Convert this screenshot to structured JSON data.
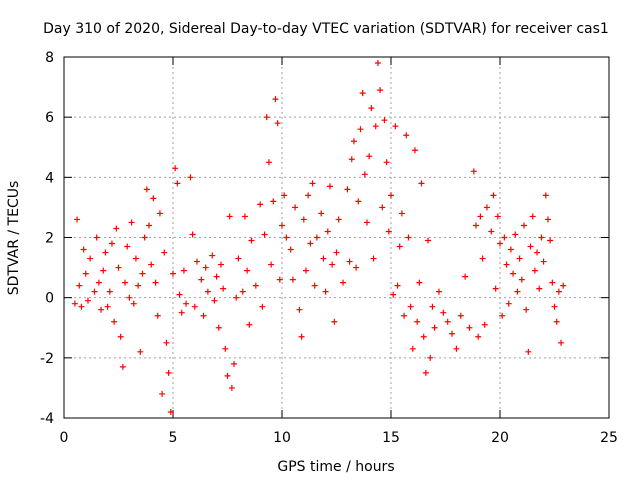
{
  "chart_data": {
    "type": "scatter",
    "title": "Day 310 of 2020, Sidereal Day-to-day VTEC variation (SDTVAR) for receiver cas1",
    "xlabel": "GPS time / hours",
    "ylabel": "SDTVAR / TECUs",
    "xlim": [
      0,
      25
    ],
    "ylim": [
      -4,
      8
    ],
    "xticks": [
      0,
      5,
      10,
      15,
      20,
      25
    ],
    "yticks": [
      -4,
      -2,
      0,
      2,
      4,
      6,
      8
    ],
    "grid": true,
    "marker": "+",
    "series": [
      {
        "name": "SDTVAR",
        "color": "#ff0000",
        "points": [
          [
            0.5,
            -0.2
          ],
          [
            0.6,
            2.6
          ],
          [
            0.7,
            0.4
          ],
          [
            0.8,
            -0.3
          ],
          [
            0.9,
            1.6
          ],
          [
            1.0,
            0.8
          ],
          [
            1.1,
            -0.1
          ],
          [
            1.2,
            1.3
          ],
          [
            1.4,
            0.2
          ],
          [
            1.5,
            2.0
          ],
          [
            1.6,
            0.5
          ],
          [
            1.7,
            -0.4
          ],
          [
            1.8,
            0.9
          ],
          [
            1.9,
            1.5
          ],
          [
            2.0,
            -0.3
          ],
          [
            2.1,
            0.2
          ],
          [
            2.2,
            1.8
          ],
          [
            2.3,
            -0.8
          ],
          [
            2.4,
            2.3
          ],
          [
            2.5,
            1.0
          ],
          [
            2.6,
            -1.3
          ],
          [
            2.7,
            -2.3
          ],
          [
            2.8,
            0.5
          ],
          [
            2.9,
            1.7
          ],
          [
            3.0,
            0.0
          ],
          [
            3.1,
            2.5
          ],
          [
            3.2,
            -0.2
          ],
          [
            3.3,
            1.3
          ],
          [
            3.4,
            0.4
          ],
          [
            3.5,
            -1.8
          ],
          [
            3.6,
            0.8
          ],
          [
            3.7,
            2.0
          ],
          [
            3.8,
            3.6
          ],
          [
            3.9,
            2.4
          ],
          [
            4.0,
            1.1
          ],
          [
            4.1,
            3.3
          ],
          [
            4.2,
            0.5
          ],
          [
            4.3,
            -0.6
          ],
          [
            4.4,
            2.8
          ],
          [
            4.5,
            -3.2
          ],
          [
            4.6,
            1.5
          ],
          [
            4.7,
            -1.5
          ],
          [
            4.8,
            -2.5
          ],
          [
            4.9,
            -3.8
          ],
          [
            5.0,
            0.8
          ],
          [
            5.1,
            4.3
          ],
          [
            5.2,
            3.8
          ],
          [
            5.3,
            0.1
          ],
          [
            5.4,
            -0.5
          ],
          [
            5.5,
            0.9
          ],
          [
            5.6,
            -0.2
          ],
          [
            5.8,
            4.0
          ],
          [
            5.9,
            2.1
          ],
          [
            6.0,
            -0.3
          ],
          [
            6.1,
            1.2
          ],
          [
            6.3,
            0.6
          ],
          [
            6.4,
            -0.6
          ],
          [
            6.5,
            1.0
          ],
          [
            6.6,
            0.2
          ],
          [
            6.8,
            1.4
          ],
          [
            6.9,
            -0.1
          ],
          [
            7.0,
            0.7
          ],
          [
            7.1,
            -1.0
          ],
          [
            7.2,
            1.1
          ],
          [
            7.3,
            0.3
          ],
          [
            7.4,
            -1.7
          ],
          [
            7.5,
            -2.6
          ],
          [
            7.6,
            2.7
          ],
          [
            7.7,
            -3.0
          ],
          [
            7.8,
            -2.2
          ],
          [
            7.9,
            0.0
          ],
          [
            8.0,
            1.3
          ],
          [
            8.2,
            0.2
          ],
          [
            8.3,
            2.7
          ],
          [
            8.4,
            0.9
          ],
          [
            8.5,
            -0.9
          ],
          [
            8.6,
            1.9
          ],
          [
            8.8,
            0.4
          ],
          [
            9.0,
            3.1
          ],
          [
            9.1,
            -0.3
          ],
          [
            9.2,
            2.1
          ],
          [
            9.3,
            6.0
          ],
          [
            9.4,
            4.5
          ],
          [
            9.5,
            1.1
          ],
          [
            9.6,
            3.2
          ],
          [
            9.7,
            6.6
          ],
          [
            9.8,
            5.8
          ],
          [
            9.9,
            0.6
          ],
          [
            10.0,
            2.4
          ],
          [
            10.1,
            3.4
          ],
          [
            10.2,
            2.0
          ],
          [
            10.4,
            1.6
          ],
          [
            10.5,
            0.6
          ],
          [
            10.6,
            3.0
          ],
          [
            10.8,
            -0.4
          ],
          [
            10.9,
            -1.3
          ],
          [
            11.0,
            2.6
          ],
          [
            11.1,
            0.9
          ],
          [
            11.2,
            3.4
          ],
          [
            11.3,
            1.8
          ],
          [
            11.4,
            3.8
          ],
          [
            11.5,
            0.4
          ],
          [
            11.6,
            2.0
          ],
          [
            11.8,
            2.8
          ],
          [
            11.9,
            1.3
          ],
          [
            12.0,
            0.2
          ],
          [
            12.1,
            2.2
          ],
          [
            12.2,
            3.7
          ],
          [
            12.3,
            1.1
          ],
          [
            12.4,
            -0.8
          ],
          [
            12.5,
            1.5
          ],
          [
            12.6,
            2.6
          ],
          [
            12.8,
            0.5
          ],
          [
            13.0,
            3.6
          ],
          [
            13.1,
            1.2
          ],
          [
            13.2,
            4.6
          ],
          [
            13.3,
            5.2
          ],
          [
            13.4,
            1.0
          ],
          [
            13.5,
            3.2
          ],
          [
            13.6,
            5.6
          ],
          [
            13.7,
            6.8
          ],
          [
            13.8,
            4.1
          ],
          [
            13.9,
            2.5
          ],
          [
            14.0,
            4.7
          ],
          [
            14.1,
            6.3
          ],
          [
            14.2,
            1.3
          ],
          [
            14.3,
            5.7
          ],
          [
            14.4,
            7.8
          ],
          [
            14.5,
            6.9
          ],
          [
            14.6,
            3.0
          ],
          [
            14.7,
            5.9
          ],
          [
            14.8,
            4.5
          ],
          [
            14.9,
            2.2
          ],
          [
            15.0,
            3.4
          ],
          [
            15.1,
            0.1
          ],
          [
            15.2,
            5.7
          ],
          [
            15.3,
            0.4
          ],
          [
            15.4,
            1.7
          ],
          [
            15.5,
            2.8
          ],
          [
            15.6,
            -0.6
          ],
          [
            15.7,
            5.4
          ],
          [
            15.8,
            2.0
          ],
          [
            15.9,
            -0.3
          ],
          [
            16.0,
            -1.7
          ],
          [
            16.1,
            4.9
          ],
          [
            16.2,
            -0.8
          ],
          [
            16.3,
            0.5
          ],
          [
            16.4,
            3.8
          ],
          [
            16.5,
            -1.3
          ],
          [
            16.6,
            -2.5
          ],
          [
            16.7,
            1.9
          ],
          [
            16.8,
            -2.0
          ],
          [
            16.9,
            -0.3
          ],
          [
            17.0,
            -1.0
          ],
          [
            17.2,
            0.2
          ],
          [
            17.4,
            -0.5
          ],
          [
            17.6,
            -0.8
          ],
          [
            17.8,
            -1.2
          ],
          [
            18.0,
            -1.7
          ],
          [
            18.2,
            -0.6
          ],
          [
            18.4,
            0.7
          ],
          [
            18.6,
            -1.0
          ],
          [
            18.8,
            4.2
          ],
          [
            18.9,
            2.4
          ],
          [
            19.0,
            -1.3
          ],
          [
            19.1,
            2.7
          ],
          [
            19.2,
            1.3
          ],
          [
            19.3,
            -0.9
          ],
          [
            19.4,
            3.0
          ],
          [
            19.6,
            2.2
          ],
          [
            19.7,
            3.4
          ],
          [
            19.8,
            0.3
          ],
          [
            19.9,
            2.7
          ],
          [
            20.0,
            1.8
          ],
          [
            20.1,
            -0.6
          ],
          [
            20.2,
            2.0
          ],
          [
            20.3,
            1.1
          ],
          [
            20.4,
            -0.2
          ],
          [
            20.5,
            1.6
          ],
          [
            20.6,
            0.8
          ],
          [
            20.7,
            2.1
          ],
          [
            20.8,
            0.2
          ],
          [
            20.9,
            1.3
          ],
          [
            21.0,
            0.6
          ],
          [
            21.1,
            2.4
          ],
          [
            21.2,
            -0.4
          ],
          [
            21.3,
            -1.8
          ],
          [
            21.4,
            1.7
          ],
          [
            21.5,
            2.7
          ],
          [
            21.6,
            0.9
          ],
          [
            21.7,
            1.5
          ],
          [
            21.8,
            0.3
          ],
          [
            21.9,
            2.0
          ],
          [
            22.0,
            1.2
          ],
          [
            22.1,
            3.4
          ],
          [
            22.2,
            2.6
          ],
          [
            22.3,
            1.9
          ],
          [
            22.4,
            0.5
          ],
          [
            22.5,
            -0.3
          ],
          [
            22.6,
            -0.8
          ],
          [
            22.7,
            0.2
          ],
          [
            22.8,
            -1.5
          ],
          [
            22.9,
            0.4
          ]
        ]
      }
    ]
  }
}
